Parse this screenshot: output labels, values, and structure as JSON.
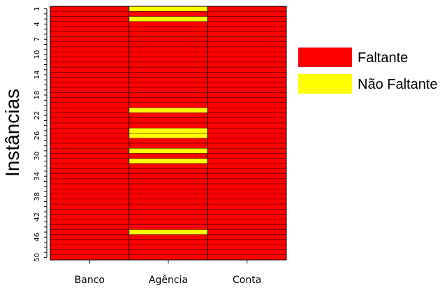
{
  "chart_data": {
    "type": "heatmap",
    "ylabel": "Instâncias",
    "categories": [
      "Banco",
      "Agência",
      "Conta"
    ],
    "y_tick_labels": [
      "1",
      "4",
      "7",
      "10",
      "14",
      "18",
      "22",
      "26",
      "30",
      "34",
      "38",
      "42",
      "46",
      "50"
    ],
    "n_rows": 50,
    "states": [
      "Faltante",
      "Não Faltante"
    ],
    "colors": {
      "Faltante": "#ff0000",
      "Não Faltante": "#ffff00"
    },
    "non_missing_rows": {
      "Banco": [],
      "Agência": [
        1,
        3,
        21,
        25,
        26,
        29,
        31,
        45
      ],
      "Conta": []
    },
    "legend": [
      {
        "label": "Faltante",
        "color": "#ff0000"
      },
      {
        "label": "Não Faltante",
        "color": "#ffff00"
      }
    ],
    "legend_position": "right",
    "grid": false
  }
}
